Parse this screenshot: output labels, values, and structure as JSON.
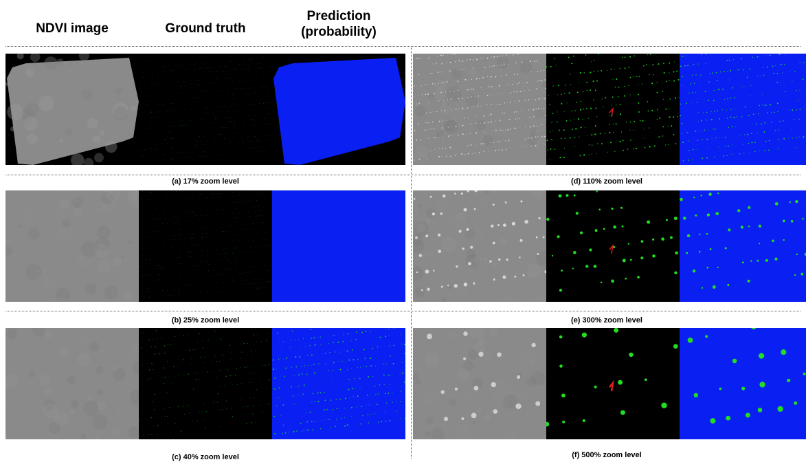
{
  "headers": {
    "ndvi": "NDVI image",
    "ground_truth": "Ground truth",
    "prediction": "Prediction\n(probability)"
  },
  "captions": {
    "a": "(a) 17% zoom level",
    "b": "(b) 25% zoom level",
    "c": "(c) 40% zoom level",
    "d": "(d) 110% zoom level",
    "e": "(e) 300% zoom level",
    "f": "(f) 500% zoom level"
  },
  "colors": {
    "ndvi_gray": "#8a8a8a",
    "ground_truth_bg": "#000000",
    "plant_green": "#22dd22",
    "plant_red": "#e02020",
    "prediction_blue": "#0a1ff2"
  }
}
